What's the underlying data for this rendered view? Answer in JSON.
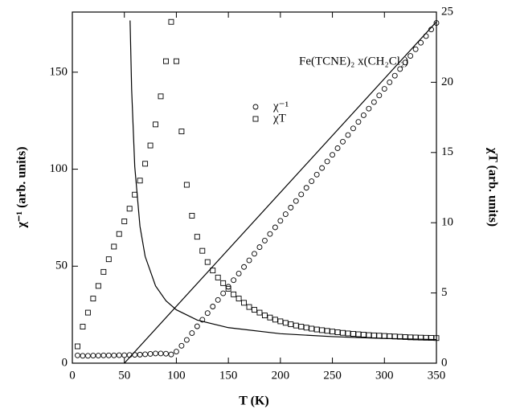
{
  "chart_data": {
    "type": "scatter",
    "annotation": "Fe(TCNE)₂ x(CH₂Cl₂)",
    "xlabel": "T (K)",
    "ylabel": "χ⁻¹ (arb. units)",
    "y2label": "χT (arb. units)",
    "xlim": [
      0,
      350
    ],
    "xticks": [
      0,
      50,
      100,
      150,
      200,
      250,
      300,
      350
    ],
    "ylim": [
      0,
      181
    ],
    "yticks": [
      0,
      50,
      100,
      150
    ],
    "y2lim": [
      0,
      25
    ],
    "y2ticks": [
      0,
      5,
      10,
      15,
      20,
      25
    ],
    "legend": "upper-right",
    "series": [
      {
        "name": "χ⁻¹",
        "marker": "circle",
        "color": "#000000",
        "x": [
          5,
          10,
          15,
          20,
          25,
          30,
          35,
          40,
          45,
          50,
          55,
          60,
          65,
          70,
          75,
          80,
          85,
          90,
          95,
          100,
          105,
          110,
          115,
          120,
          125,
          130,
          135,
          140,
          145,
          150,
          155,
          160,
          165,
          170,
          175,
          180,
          185,
          190,
          195,
          200,
          205,
          210,
          215,
          220,
          225,
          230,
          235,
          240,
          245,
          250,
          255,
          260,
          265,
          270,
          275,
          280,
          285,
          290,
          295,
          300,
          305,
          310,
          315,
          320,
          325,
          330,
          335,
          340,
          345,
          350
        ],
        "values": [
          4,
          3.8,
          3.8,
          3.9,
          3.9,
          4,
          4,
          4,
          4.1,
          4.1,
          4.2,
          4.3,
          4.4,
          4.6,
          4.8,
          5,
          5,
          4.9,
          4.5,
          6,
          9,
          12,
          15.5,
          19,
          22.4,
          25.8,
          29.2,
          32.6,
          36,
          39.4,
          42.8,
          46.2,
          49.6,
          53,
          56.4,
          59.8,
          63.2,
          66.6,
          70,
          73.4,
          76.8,
          80.2,
          83.6,
          87,
          90.4,
          93.8,
          97.2,
          100.6,
          104,
          107.4,
          110.8,
          114.2,
          117.6,
          121,
          124.4,
          127.8,
          131.2,
          134.6,
          138,
          141.4,
          144.8,
          148.2,
          151.6,
          155,
          158.4,
          161.8,
          165.2,
          168.6,
          172,
          175.4
        ]
      },
      {
        "name": "χT",
        "marker": "square",
        "color": "#000000",
        "axis": "y2",
        "x": [
          5,
          10,
          15,
          20,
          25,
          30,
          35,
          40,
          45,
          50,
          55,
          60,
          65,
          70,
          75,
          80,
          85,
          90,
          95,
          100,
          105,
          110,
          115,
          120,
          125,
          130,
          135,
          140,
          145,
          150,
          155,
          160,
          165,
          170,
          175,
          180,
          185,
          190,
          195,
          200,
          205,
          210,
          215,
          220,
          225,
          230,
          235,
          240,
          245,
          250,
          255,
          260,
          265,
          270,
          275,
          280,
          285,
          290,
          295,
          300,
          305,
          310,
          315,
          320,
          325,
          330,
          335,
          340,
          345,
          350
        ],
        "values": [
          1.2,
          2.6,
          3.6,
          4.6,
          5.5,
          6.5,
          7.4,
          8.3,
          9.2,
          10.1,
          11,
          12,
          13,
          14.2,
          15.5,
          17,
          19,
          21.5,
          24.3,
          21.5,
          16.5,
          12.7,
          10.5,
          9,
          8,
          7.2,
          6.6,
          6.1,
          5.7,
          5.3,
          4.9,
          4.6,
          4.3,
          4.0,
          3.8,
          3.6,
          3.4,
          3.25,
          3.1,
          2.98,
          2.87,
          2.77,
          2.68,
          2.6,
          2.53,
          2.46,
          2.4,
          2.35,
          2.3,
          2.25,
          2.2,
          2.16,
          2.12,
          2.09,
          2.06,
          2.03,
          2.0,
          1.98,
          1.96,
          1.94,
          1.92,
          1.9,
          1.88,
          1.86,
          1.84,
          1.83,
          1.82,
          1.81,
          1.8,
          1.79
        ]
      },
      {
        "marker": "line",
        "color": "#000000",
        "x": [
          50,
          350
        ],
        "values": [
          0,
          176
        ]
      },
      {
        "marker": "line",
        "color": "#000000",
        "axis": "y2",
        "x": [
          55.5,
          57,
          60,
          65,
          70,
          80,
          90,
          100,
          120,
          150,
          200,
          250,
          300,
          350
        ],
        "values": [
          24.4,
          19.5,
          14.0,
          9.75,
          7.6,
          5.5,
          4.44,
          3.8,
          3.07,
          2.53,
          2.1,
          1.89,
          1.76,
          1.68
        ]
      }
    ]
  }
}
